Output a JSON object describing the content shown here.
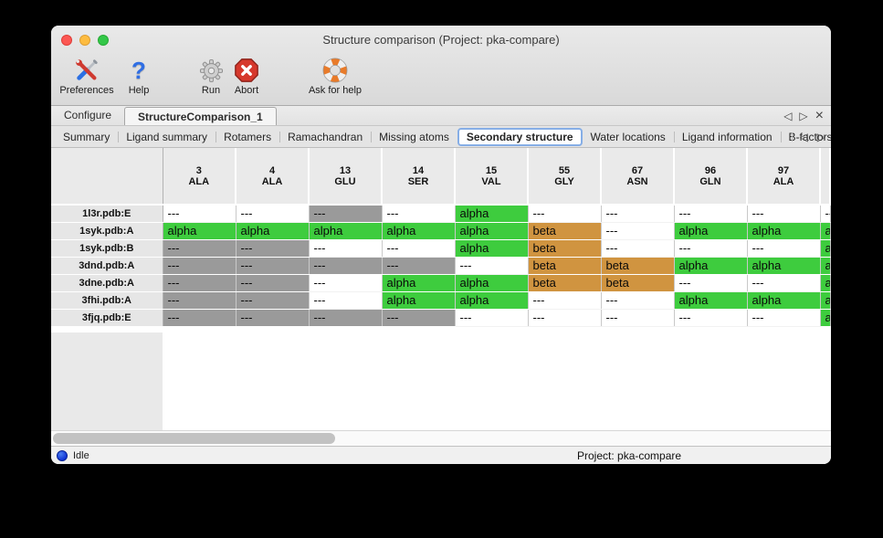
{
  "window": {
    "title": "Structure comparison (Project: pka-compare)"
  },
  "toolbar": {
    "items": [
      {
        "label": "Preferences",
        "icon": "tools-icon"
      },
      {
        "label": "Help",
        "icon": "question-mark-icon"
      },
      {
        "label": "Run",
        "icon": "gear-icon"
      },
      {
        "label": "Abort",
        "icon": "stop-icon"
      },
      {
        "label": "Ask for help",
        "icon": "lifebuoy-icon"
      }
    ]
  },
  "tabs": {
    "items": [
      {
        "label": "Configure",
        "selected": false
      },
      {
        "label": "StructureComparison_1",
        "selected": true
      }
    ],
    "nav": {
      "left": "◁",
      "right": "▷",
      "close": "×"
    }
  },
  "subtabs": {
    "items": [
      {
        "label": "Summary",
        "selected": false
      },
      {
        "label": "Ligand summary",
        "selected": false
      },
      {
        "label": "Rotamers",
        "selected": false
      },
      {
        "label": "Ramachandran",
        "selected": false
      },
      {
        "label": "Missing atoms",
        "selected": false
      },
      {
        "label": "Secondary structure",
        "selected": true
      },
      {
        "label": "Water locations",
        "selected": false
      },
      {
        "label": "Ligand information",
        "selected": false
      },
      {
        "label": "B-factors",
        "selected": false
      }
    ],
    "nav": {
      "left": "◁",
      "right": "▷"
    }
  },
  "table": {
    "columns": [
      {
        "num": "3",
        "res": "ALA"
      },
      {
        "num": "4",
        "res": "ALA"
      },
      {
        "num": "13",
        "res": "GLU"
      },
      {
        "num": "14",
        "res": "SER"
      },
      {
        "num": "15",
        "res": "VAL"
      },
      {
        "num": "55",
        "res": "GLY"
      },
      {
        "num": "67",
        "res": "ASN"
      },
      {
        "num": "96",
        "res": "GLN"
      },
      {
        "num": "97",
        "res": "ALA"
      },
      {
        "num": "",
        "res": ""
      }
    ],
    "rows": [
      {
        "label": "1l3r.pdb:E",
        "cells": [
          {
            "v": "---",
            "t": "w"
          },
          {
            "v": "---",
            "t": "w"
          },
          {
            "v": "---",
            "t": "g"
          },
          {
            "v": "---",
            "t": "w"
          },
          {
            "v": "alpha",
            "t": "a"
          },
          {
            "v": "---",
            "t": "w"
          },
          {
            "v": "---",
            "t": "w"
          },
          {
            "v": "---",
            "t": "w"
          },
          {
            "v": "---",
            "t": "w"
          },
          {
            "v": "---",
            "t": "w"
          }
        ]
      },
      {
        "label": "1syk.pdb:A",
        "cells": [
          {
            "v": "alpha",
            "t": "a"
          },
          {
            "v": "alpha",
            "t": "a"
          },
          {
            "v": "alpha",
            "t": "a"
          },
          {
            "v": "alpha",
            "t": "a"
          },
          {
            "v": "alpha",
            "t": "a"
          },
          {
            "v": "beta",
            "t": "b"
          },
          {
            "v": "---",
            "t": "w"
          },
          {
            "v": "alpha",
            "t": "a"
          },
          {
            "v": "alpha",
            "t": "a"
          },
          {
            "v": "alpha",
            "t": "a"
          }
        ]
      },
      {
        "label": "1syk.pdb:B",
        "cells": [
          {
            "v": "---",
            "t": "g"
          },
          {
            "v": "---",
            "t": "g"
          },
          {
            "v": "---",
            "t": "w"
          },
          {
            "v": "---",
            "t": "w"
          },
          {
            "v": "alpha",
            "t": "a"
          },
          {
            "v": "beta",
            "t": "b"
          },
          {
            "v": "---",
            "t": "w"
          },
          {
            "v": "---",
            "t": "w"
          },
          {
            "v": "---",
            "t": "w"
          },
          {
            "v": "alpha",
            "t": "a"
          }
        ]
      },
      {
        "label": "3dnd.pdb:A",
        "cells": [
          {
            "v": "---",
            "t": "g"
          },
          {
            "v": "---",
            "t": "g"
          },
          {
            "v": "---",
            "t": "g"
          },
          {
            "v": "---",
            "t": "g"
          },
          {
            "v": "---",
            "t": "w"
          },
          {
            "v": "beta",
            "t": "b"
          },
          {
            "v": "beta",
            "t": "b"
          },
          {
            "v": "alpha",
            "t": "a"
          },
          {
            "v": "alpha",
            "t": "a"
          },
          {
            "v": "alpha",
            "t": "a"
          }
        ]
      },
      {
        "label": "3dne.pdb:A",
        "cells": [
          {
            "v": "---",
            "t": "g"
          },
          {
            "v": "---",
            "t": "g"
          },
          {
            "v": "---",
            "t": "w"
          },
          {
            "v": "alpha",
            "t": "a"
          },
          {
            "v": "alpha",
            "t": "a"
          },
          {
            "v": "beta",
            "t": "b"
          },
          {
            "v": "beta",
            "t": "b"
          },
          {
            "v": "---",
            "t": "w"
          },
          {
            "v": "---",
            "t": "w"
          },
          {
            "v": "alpha",
            "t": "a"
          }
        ]
      },
      {
        "label": "3fhi.pdb:A",
        "cells": [
          {
            "v": "---",
            "t": "g"
          },
          {
            "v": "---",
            "t": "g"
          },
          {
            "v": "---",
            "t": "w"
          },
          {
            "v": "alpha",
            "t": "a"
          },
          {
            "v": "alpha",
            "t": "a"
          },
          {
            "v": "---",
            "t": "w"
          },
          {
            "v": "---",
            "t": "w"
          },
          {
            "v": "alpha",
            "t": "a"
          },
          {
            "v": "alpha",
            "t": "a"
          },
          {
            "v": "alpha",
            "t": "a"
          }
        ]
      },
      {
        "label": "3fjq.pdb:E",
        "cells": [
          {
            "v": "---",
            "t": "g"
          },
          {
            "v": "---",
            "t": "g"
          },
          {
            "v": "---",
            "t": "g"
          },
          {
            "v": "---",
            "t": "g"
          },
          {
            "v": "---",
            "t": "w"
          },
          {
            "v": "---",
            "t": "w"
          },
          {
            "v": "---",
            "t": "w"
          },
          {
            "v": "---",
            "t": "w"
          },
          {
            "v": "---",
            "t": "w"
          },
          {
            "v": "alpha",
            "t": "a"
          }
        ]
      }
    ]
  },
  "statusbar": {
    "status": "Idle",
    "project": "Project: pka-compare"
  },
  "colors": {
    "alpha": "#3ecc3e",
    "beta": "#d09440",
    "missing_gray": "#9a9a9a"
  }
}
